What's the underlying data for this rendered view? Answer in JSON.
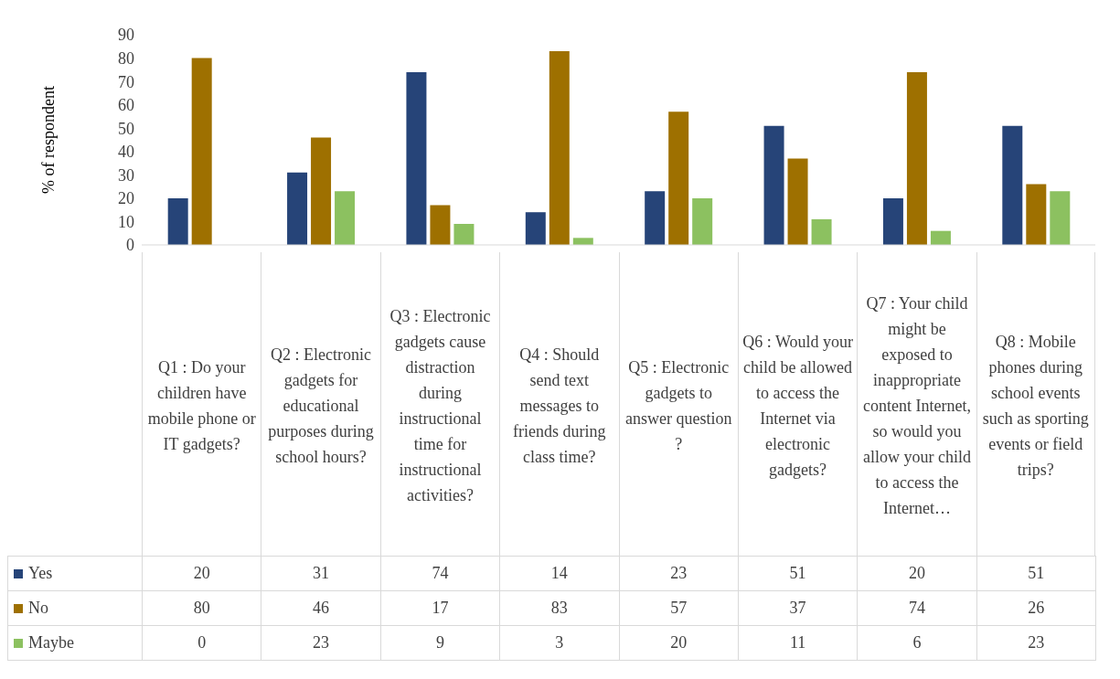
{
  "chart_data": {
    "type": "bar",
    "ylabel": "% of respondent",
    "categories": [
      "Q1 : Do your children have mobile phone or IT gadgets?",
      "Q2 : Electronic gadgets for educational purposes during school hours?",
      "Q3 : Electronic gadgets cause distraction during instructional time for instructional activities?",
      "Q4 : Should send text messages to friends during class time?",
      "Q5 : Electronic gadgets to answer question ?",
      "Q6 : Would your child be allowed to access the Internet via electronic gadgets?",
      "Q7 :  Your child might be exposed to inappropriate content Internet, so would you allow your child to access the Internet…",
      "Q8 : Mobile phones during school events such as sporting events or field trips?"
    ],
    "series": [
      {
        "name": "Yes",
        "color": "#264478",
        "values": [
          20,
          31,
          74,
          14,
          23,
          51,
          20,
          51
        ]
      },
      {
        "name": "No",
        "color": "#9e7000",
        "values": [
          80,
          46,
          17,
          83,
          57,
          37,
          74,
          26
        ]
      },
      {
        "name": "Maybe",
        "color": "#8cc160",
        "values": [
          0,
          23,
          9,
          3,
          20,
          11,
          6,
          23
        ]
      }
    ],
    "ylim": [
      0,
      90
    ],
    "yticks": [
      0,
      10,
      20,
      30,
      40,
      50,
      60,
      70,
      80,
      90
    ],
    "legend": "bottom",
    "data_labels": true
  }
}
